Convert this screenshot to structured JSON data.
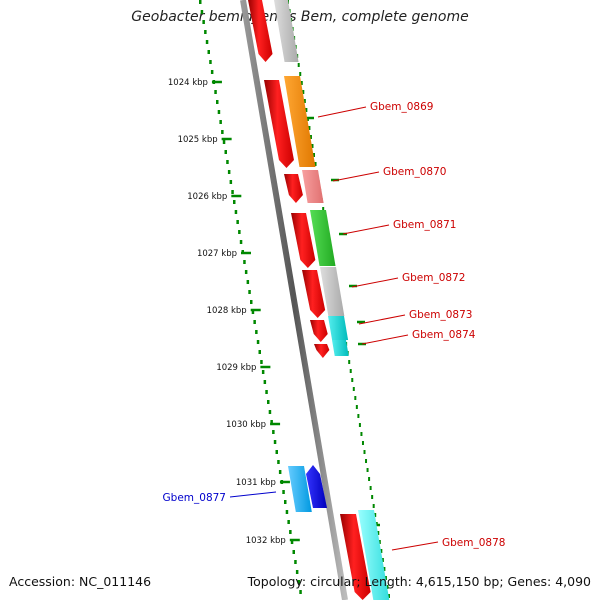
{
  "title": "Geobacter bemidjiensis Bem, complete genome",
  "footer": {
    "accession": "Accession: NC_011146",
    "topology": "Topology: circular; Length: 4,615,150 bp; Genes: 4,090"
  },
  "scale_labels": [
    "1024 kbp",
    "1025 kbp",
    "1026 kbp",
    "1027 kbp",
    "1028 kbp",
    "1029 kbp",
    "1030 kbp",
    "1031 kbp",
    "1032 kbp"
  ],
  "gene_labels": [
    {
      "name": "Gbem_0869",
      "color": "#cc0000"
    },
    {
      "name": "Gbem_0870",
      "color": "#cc0000"
    },
    {
      "name": "Gbem_0871",
      "color": "#cc0000"
    },
    {
      "name": "Gbem_0872",
      "color": "#cc0000"
    },
    {
      "name": "Gbem_0873",
      "color": "#cc0000"
    },
    {
      "name": "Gbem_0874",
      "color": "#cc0000"
    },
    {
      "name": "Gbem_0877",
      "color": "#0000cc"
    },
    {
      "name": "Gbem_0878",
      "color": "#cc0000"
    }
  ],
  "colors": {
    "dna_line": "#888888",
    "scale_dots": "#008800",
    "orange": "#ff8c00",
    "salmon": "#f08080",
    "green": "#33cc33",
    "gray": "#c0c0c0",
    "cyan": "#00cccc",
    "red": "#ff0000",
    "blue": "#0000ee",
    "skyblue": "#1ab2ff"
  }
}
